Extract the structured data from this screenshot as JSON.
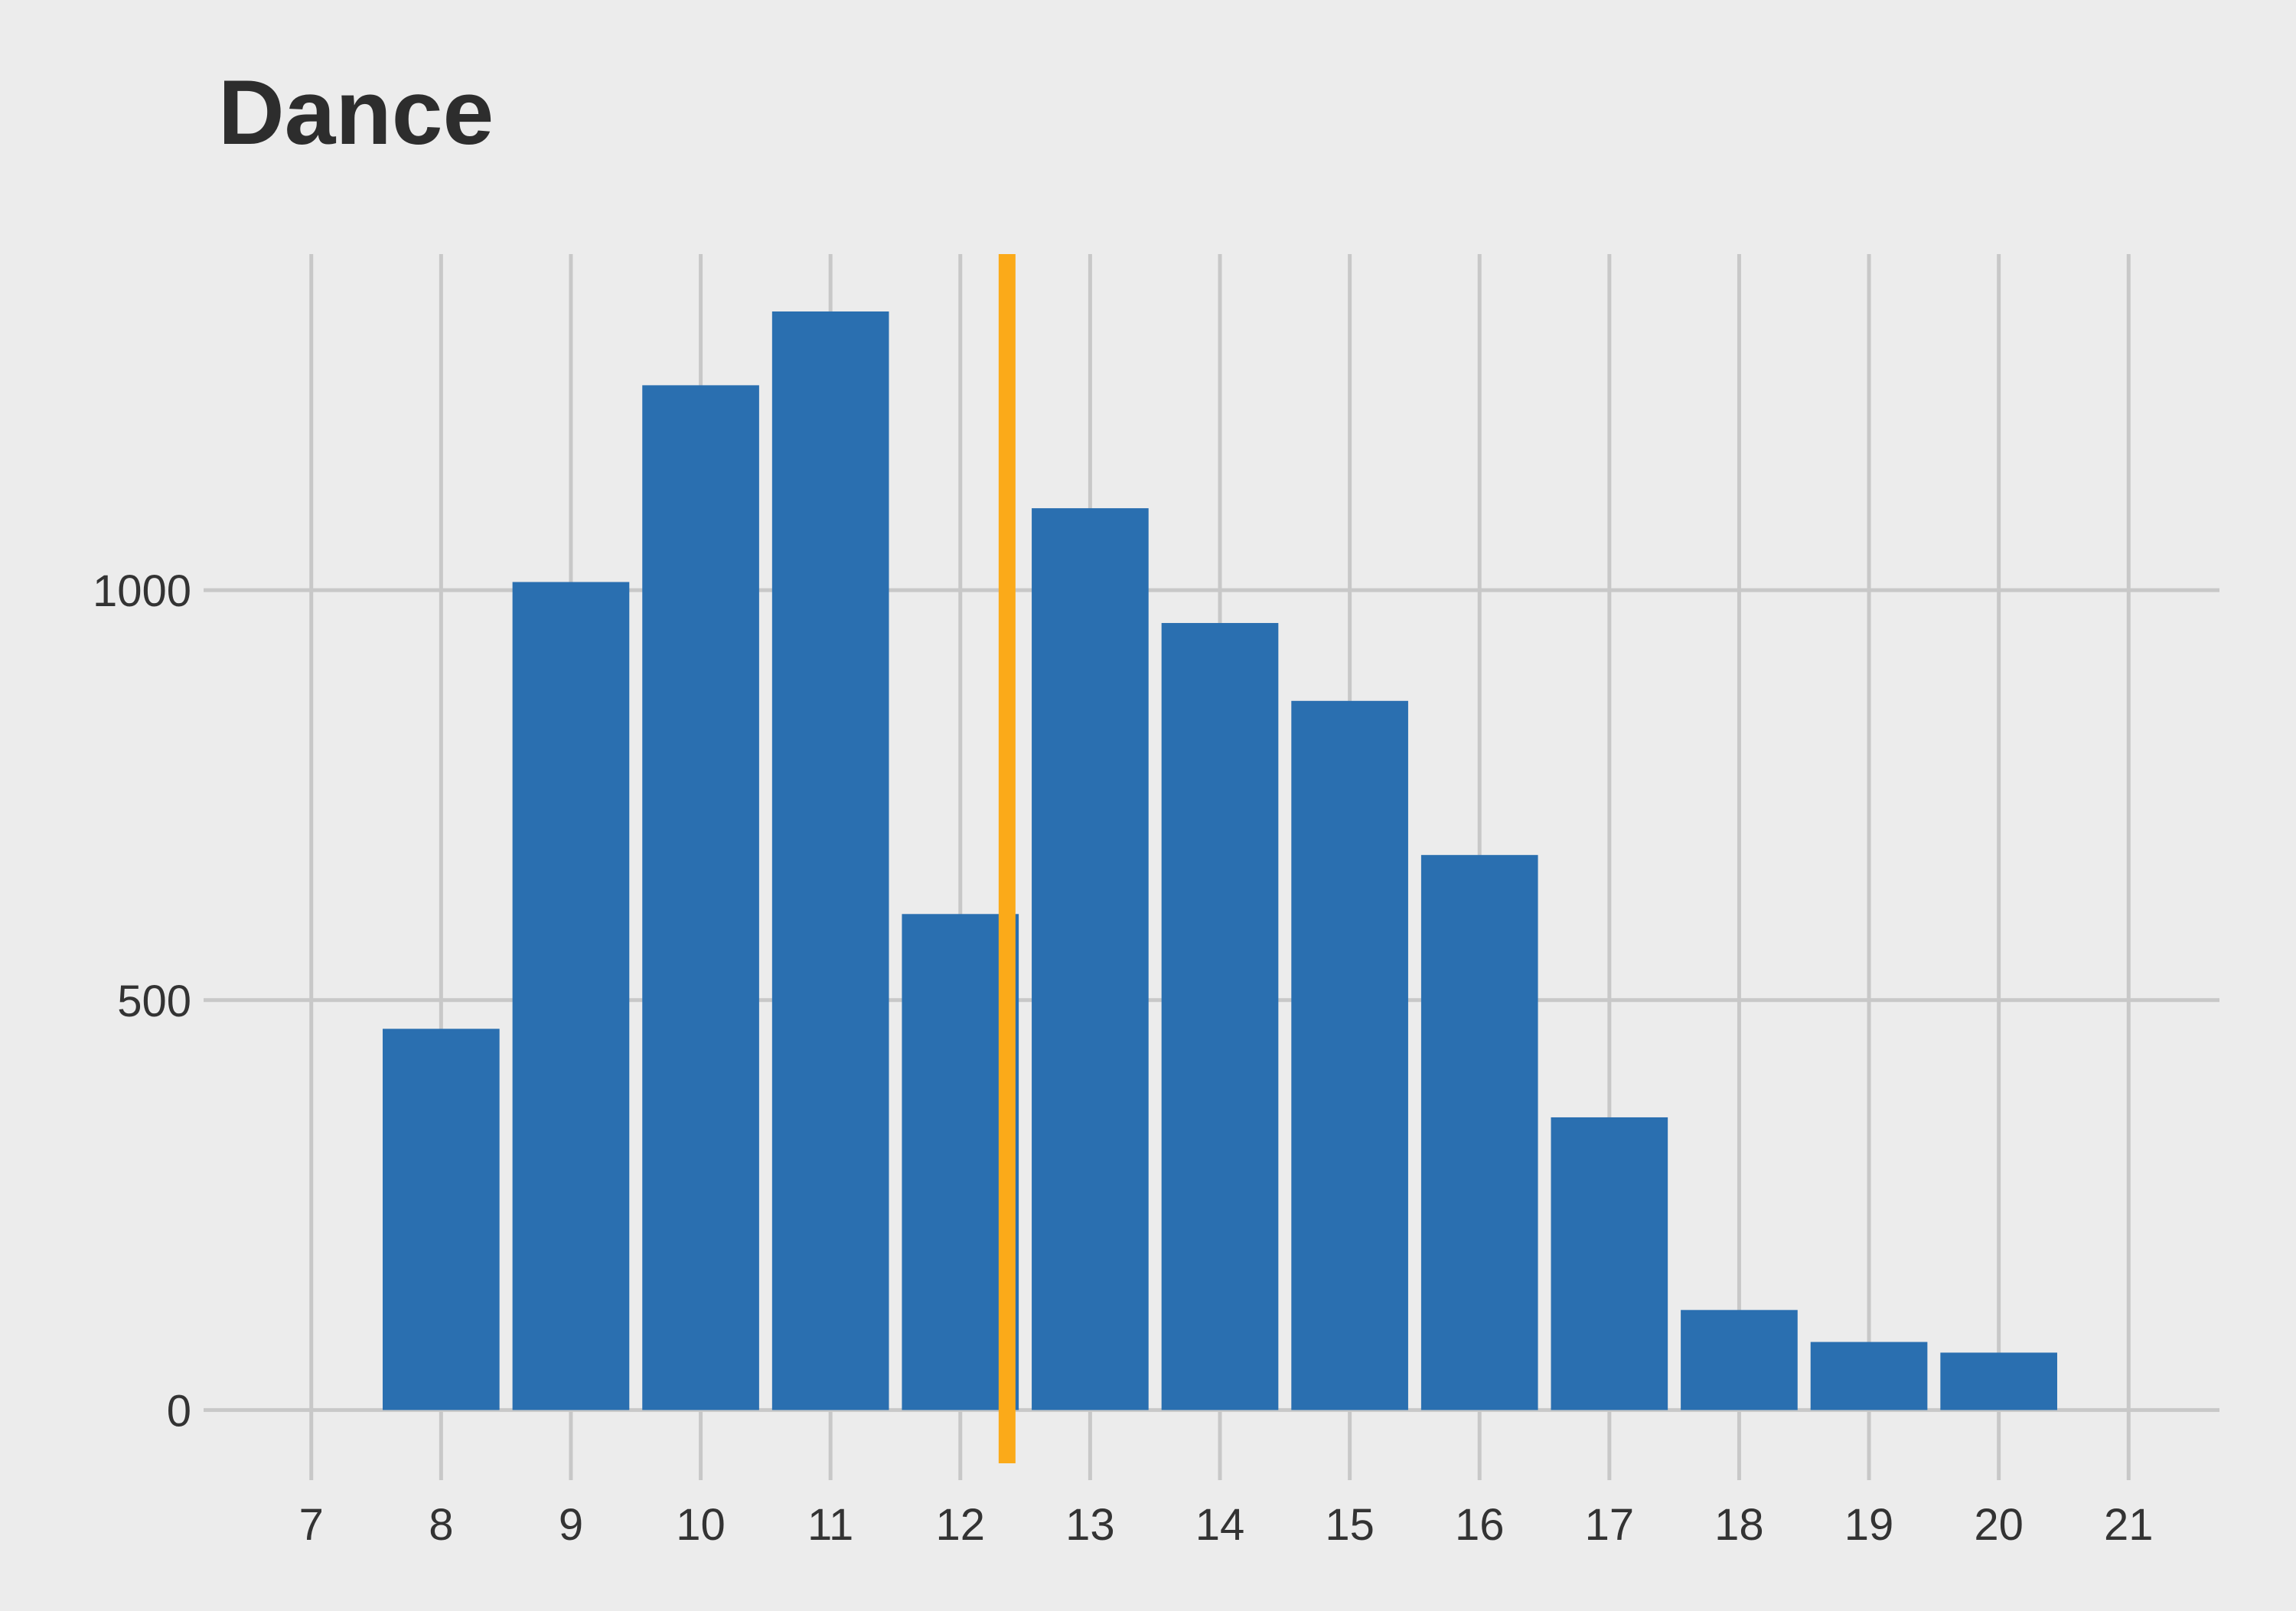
{
  "chart_data": {
    "type": "bar",
    "title": "Dance",
    "xlabel": "",
    "ylabel": "",
    "x_ticks": [
      7,
      8,
      9,
      10,
      11,
      12,
      13,
      14,
      15,
      16,
      17,
      18,
      19,
      20,
      21
    ],
    "y_ticks": [
      0,
      500,
      1000
    ],
    "xlim": [
      6.3,
      21.7
    ],
    "ylim": [
      -65,
      1410
    ],
    "grid": true,
    "bars": [
      {
        "x": 8,
        "value": 465
      },
      {
        "x": 9,
        "value": 1010
      },
      {
        "x": 10,
        "value": 1250
      },
      {
        "x": 11,
        "value": 1340
      },
      {
        "x": 12,
        "value": 605
      },
      {
        "x": 13,
        "value": 1100
      },
      {
        "x": 14,
        "value": 960
      },
      {
        "x": 15,
        "value": 865
      },
      {
        "x": 16,
        "value": 677
      },
      {
        "x": 17,
        "value": 357
      },
      {
        "x": 18,
        "value": 122
      },
      {
        "x": 19,
        "value": 83
      },
      {
        "x": 20,
        "value": 70
      }
    ],
    "reference_line": {
      "x": 12.36
    },
    "colors": {
      "bar": "#2a6fb0",
      "reference_line": "#fbaa19",
      "grid": "#c8c8c8",
      "background": "#ececec",
      "text": "#333333"
    }
  }
}
